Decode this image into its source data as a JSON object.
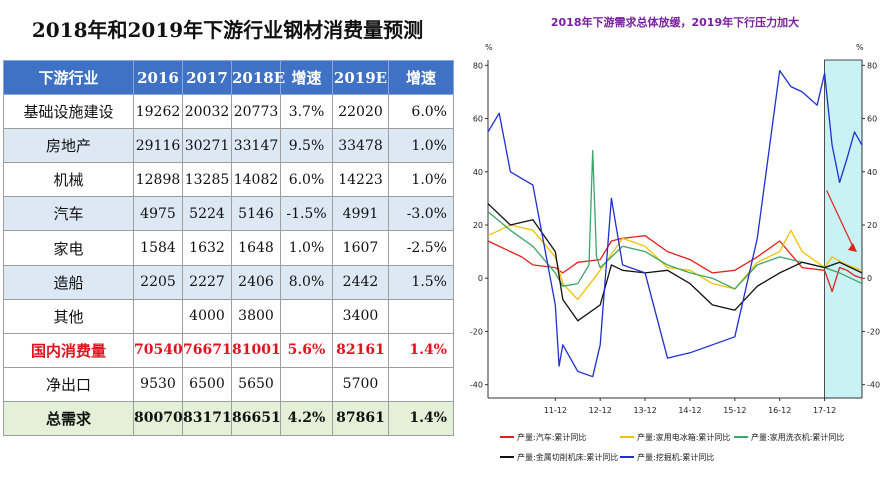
{
  "table": {
    "title": "2018年和2019年下游行业钢材消费量预测",
    "headers": [
      "下游行业",
      "2016",
      "2017",
      "2018E",
      "增速",
      "2019E",
      "增速"
    ],
    "rows": [
      [
        "基础设施建设",
        "19262",
        "20032",
        "20773",
        "3.7%",
        "22020",
        "6.0%"
      ],
      [
        "房地产",
        "29116",
        "30271",
        "33147",
        "9.5%",
        "33478",
        "1.0%"
      ],
      [
        "机械",
        "12898",
        "13285",
        "14082",
        "6.0%",
        "14223",
        "1.0%"
      ],
      [
        "汽车",
        "4975",
        "5224",
        "5146",
        "-1.5%",
        "4991",
        "-3.0%"
      ],
      [
        "家电",
        "1584",
        "1632",
        "1648",
        "1.0%",
        "1607",
        "-2.5%"
      ],
      [
        "造船",
        "2205",
        "2227",
        "2406",
        "8.0%",
        "2442",
        "1.5%"
      ],
      [
        "其他",
        "",
        "4000",
        "3800",
        "",
        "3400",
        ""
      ],
      [
        "国内消费量",
        "70540",
        "76671",
        "81001",
        "5.6%",
        "82161",
        "1.4%"
      ],
      [
        "净出口",
        "9530",
        "6500",
        "5650",
        "",
        "5700",
        ""
      ],
      [
        "总需求",
        "80070",
        "83171",
        "86651",
        "4.2%",
        "87861",
        "1.4%"
      ]
    ]
  },
  "chart_data": {
    "type": "line",
    "title": "2018年下游需求总体放缓，2019年下行压力加大",
    "y_unit_left": "%",
    "y_unit_right": "%",
    "ylim": [
      -45,
      82
    ],
    "yticks": [
      -40,
      -20,
      0,
      20,
      40,
      60,
      80
    ],
    "x_ticks": [
      "11-12",
      "12-12",
      "13-12",
      "14-12",
      "15-12",
      "16-12",
      "17-12"
    ],
    "x_range": [
      "2010-06",
      "2018-10"
    ],
    "highlight_range": [
      "2017-12",
      "2018-10"
    ],
    "highlight_color": "#c9f2f5",
    "arrow_color": "#e3201b",
    "grid": false,
    "legend_position": "bottom",
    "series": [
      {
        "name": "产量:汽车:累计同比",
        "color": "#e3201b",
        "x": [
          "2010-06",
          "2010-12",
          "2011-03",
          "2011-06",
          "2011-12",
          "2012-02",
          "2012-06",
          "2012-12",
          "2013-03",
          "2013-06",
          "2013-12",
          "2014-06",
          "2014-12",
          "2015-06",
          "2015-12",
          "2016-06",
          "2016-12",
          "2017-06",
          "2017-12",
          "2018-02",
          "2018-04",
          "2018-06",
          "2018-08",
          "2018-10"
        ],
        "values": [
          14,
          10,
          8,
          5,
          4,
          2,
          6,
          7,
          14,
          15,
          16,
          10,
          7,
          2,
          3,
          8,
          14,
          4,
          3,
          -5,
          4,
          3,
          1,
          0
        ]
      },
      {
        "name": "产量:家用电冰箱:累计同比",
        "color": "#f2c200",
        "x": [
          "2010-06",
          "2010-12",
          "2011-06",
          "2011-12",
          "2012-02",
          "2012-06",
          "2012-12",
          "2013-06",
          "2013-12",
          "2014-06",
          "2014-12",
          "2015-06",
          "2015-12",
          "2016-06",
          "2016-12",
          "2017-03",
          "2017-06",
          "2017-12",
          "2018-02",
          "2018-06",
          "2018-10"
        ],
        "values": [
          16,
          20,
          18,
          8,
          -2,
          -8,
          3,
          15,
          12,
          4,
          3,
          -2,
          -4,
          6,
          10,
          18,
          10,
          4,
          8,
          5,
          3
        ]
      },
      {
        "name": "产量:家用洗衣机:累计同比",
        "color": "#3fa46a",
        "x": [
          "2010-06",
          "2010-12",
          "2011-06",
          "2011-12",
          "2012-02",
          "2012-06",
          "2012-09",
          "2012-10",
          "2012-11",
          "2012-12",
          "2013-06",
          "2013-12",
          "2014-06",
          "2014-12",
          "2015-06",
          "2015-12",
          "2016-06",
          "2016-12",
          "2017-06",
          "2017-12",
          "2018-04",
          "2018-10"
        ],
        "values": [
          25,
          18,
          12,
          2,
          -3,
          -2,
          5,
          48,
          8,
          4,
          12,
          10,
          5,
          2,
          0,
          -4,
          5,
          8,
          6,
          4,
          2,
          -2
        ]
      },
      {
        "name": "产量:金属切削机床:累计同比",
        "color": "#111111",
        "x": [
          "2010-06",
          "2010-12",
          "2011-06",
          "2011-12",
          "2012-02",
          "2012-06",
          "2012-12",
          "2013-03",
          "2013-06",
          "2013-12",
          "2014-06",
          "2014-12",
          "2015-06",
          "2015-12",
          "2016-06",
          "2016-12",
          "2017-06",
          "2017-12",
          "2018-04",
          "2018-10"
        ],
        "values": [
          28,
          20,
          22,
          10,
          -8,
          -16,
          -10,
          5,
          3,
          2,
          3,
          -2,
          -10,
          -12,
          -3,
          2,
          6,
          4,
          6,
          2
        ]
      },
      {
        "name": "产量:挖掘机:累计同比",
        "color": "#1f2fd0",
        "x": [
          "2010-06",
          "2010-09",
          "2010-12",
          "2011-06",
          "2011-12",
          "2012-01",
          "2012-02",
          "2012-06",
          "2012-10",
          "2012-12",
          "2013-03",
          "2013-06",
          "2013-12",
          "2014-06",
          "2014-12",
          "2015-06",
          "2015-12",
          "2016-06",
          "2016-12",
          "2017-03",
          "2017-06",
          "2017-10",
          "2017-12",
          "2018-02",
          "2018-04",
          "2018-06",
          "2018-08",
          "2018-10"
        ],
        "values": [
          55,
          62,
          40,
          35,
          -10,
          -33,
          -25,
          -35,
          -37,
          -25,
          30,
          5,
          2,
          -30,
          -28,
          -25,
          -22,
          15,
          78,
          72,
          70,
          65,
          77,
          50,
          36,
          45,
          55,
          50
        ]
      }
    ]
  }
}
